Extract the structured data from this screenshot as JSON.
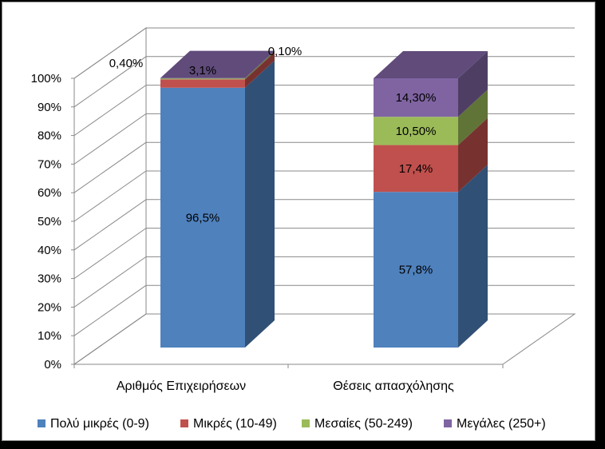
{
  "chart_data": {
    "type": "bar",
    "stacked": true,
    "percent_stacked": true,
    "three_d": true,
    "categories": [
      "Αριθμός Επιχειρήσεων",
      "Θέσεις απασχόλησης"
    ],
    "series": [
      {
        "name": "Πολύ μικρές (0-9)",
        "color": "#4f81bd",
        "values": [
          96.5,
          57.8
        ],
        "labels": [
          "96,5%",
          "57,8%"
        ]
      },
      {
        "name": "Μικρές (10-49)",
        "color": "#c0504d",
        "values": [
          3.1,
          17.4
        ],
        "labels": [
          "3,1%",
          "17,4%"
        ]
      },
      {
        "name": "Μεσαίες (50-249)",
        "color": "#9bbb59",
        "values": [
          0.4,
          10.5
        ],
        "labels": [
          "0,40%",
          "10,50%"
        ]
      },
      {
        "name": "Μεγάλες (250+)",
        "color": "#8064a2",
        "values": [
          0.1,
          14.3
        ],
        "labels": [
          "0,10%",
          "14,30%"
        ]
      }
    ],
    "y_ticks": [
      "0%",
      "10%",
      "20%",
      "30%",
      "40%",
      "50%",
      "60%",
      "70%",
      "80%",
      "90%",
      "100%"
    ],
    "ylim": [
      0,
      100
    ],
    "grid": true,
    "legend_position": "bottom"
  }
}
